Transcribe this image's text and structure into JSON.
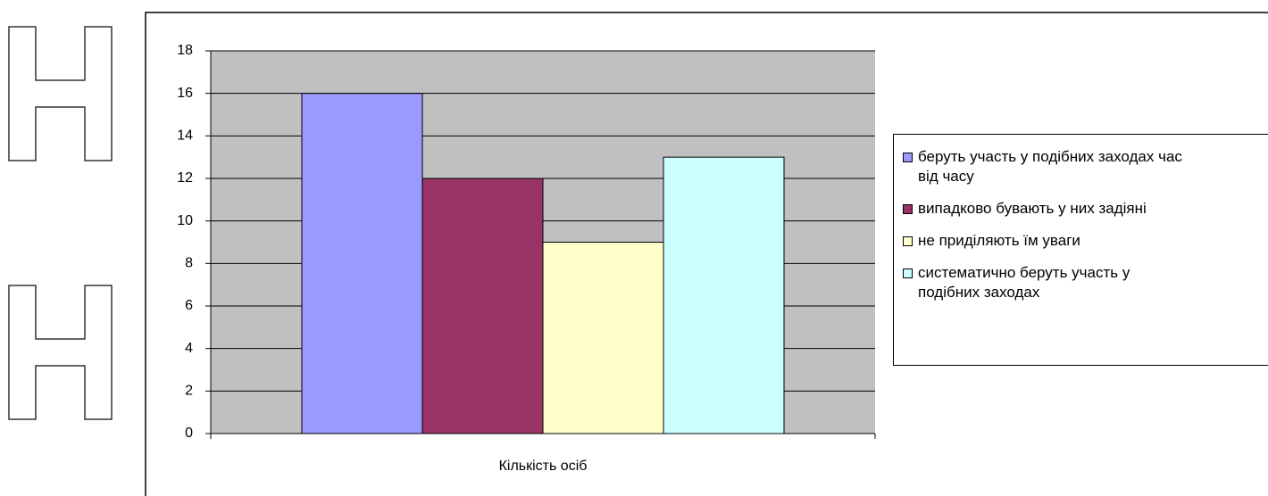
{
  "chart_data": {
    "type": "bar",
    "categories": [
      "Кількість осіб"
    ],
    "series": [
      {
        "name": "беруть участь у подібних заходах час від часу",
        "color": "#9999ff",
        "values": [
          16
        ]
      },
      {
        "name": "випадково бувають у них задіяні",
        "color": "#993366",
        "values": [
          12
        ]
      },
      {
        "name": "не приділяють їм уваги",
        "color": "#ffffcc",
        "values": [
          9
        ]
      },
      {
        "name": "систематично беруть участь у подібних заходах",
        "color": "#ccffff",
        "values": [
          13
        ]
      }
    ],
    "ylim": [
      0,
      18
    ],
    "yticks": [
      0,
      2,
      4,
      6,
      8,
      10,
      12,
      14,
      16,
      18
    ],
    "grid": true,
    "plot_background": "#c0c0c0",
    "legend": "right"
  }
}
